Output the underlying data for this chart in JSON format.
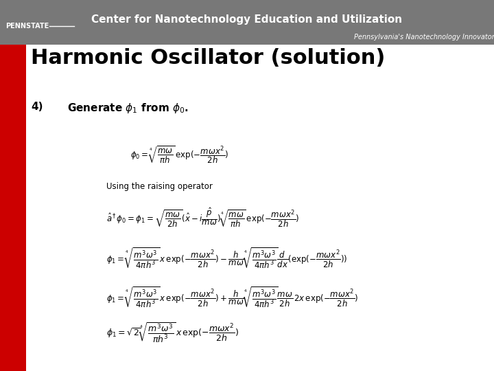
{
  "title": "Harmonic Oscillator (solution)",
  "title_fontsize": 22,
  "title_color": "#000000",
  "background_color": "#ffffff",
  "header_bg_color": "#787878",
  "red_bar_color": "#cc0000",
  "header_text": "Center for Nanotechnology Education and Utilization",
  "header_subtext": "Pennsylvania's Nanotechnology Innovator!",
  "pennstate_text": "PENNSTATE",
  "point4_label": "4)",
  "point4_text_plain": "Generate ",
  "using_text": "Using the raising operator",
  "eq_fontsize": 8.5,
  "label_fontsize": 11
}
